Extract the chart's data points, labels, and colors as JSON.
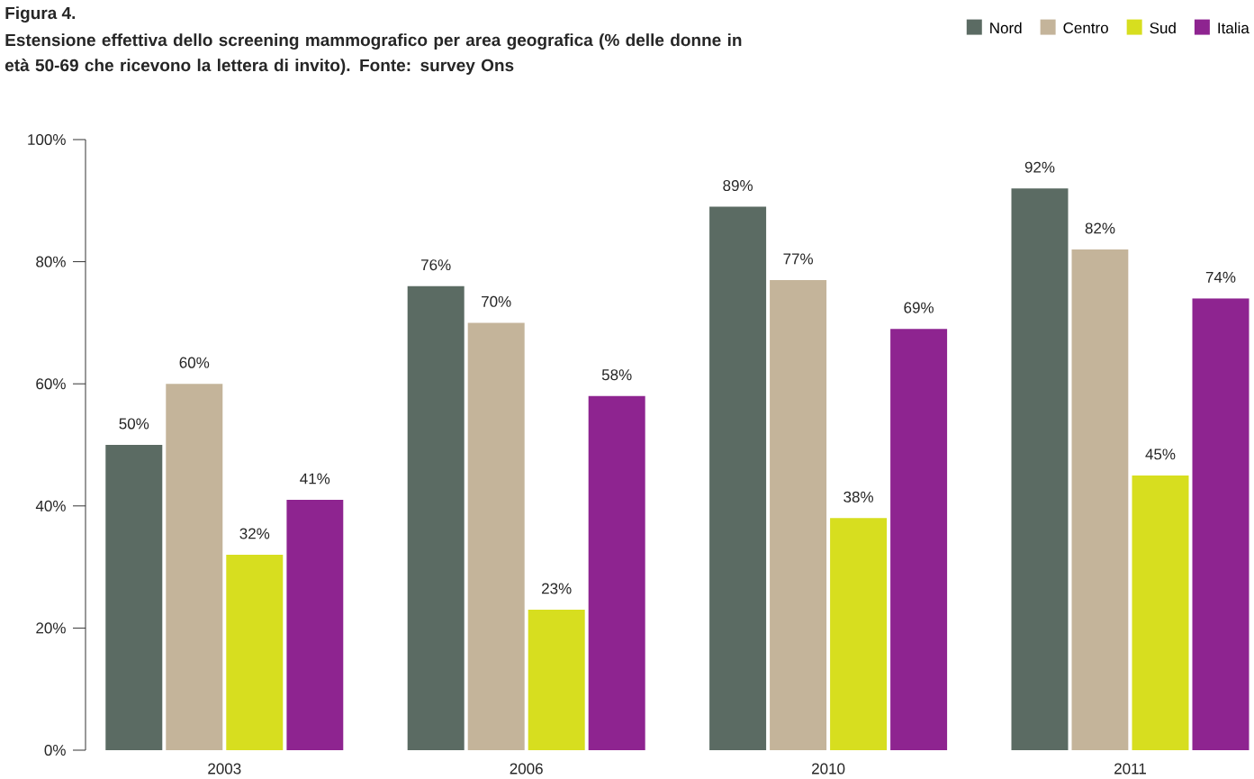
{
  "chart_data": {
    "type": "bar",
    "title": "Figura 4.",
    "subtitle": "Estensione effettiva dello screening mammografico per area geografica (% delle donne in età 50-69 che ricevono la lettera di invito). Fonte: survey Ons",
    "categories": [
      "2003",
      "2006",
      "2010",
      "2011"
    ],
    "series": [
      {
        "name": "Nord",
        "color": "#5b6b63",
        "values": [
          50,
          76,
          89,
          92
        ],
        "value_labels": [
          "50%",
          "76%",
          "89%",
          "92%"
        ]
      },
      {
        "name": "Centro",
        "color": "#c4b49a",
        "values": [
          60,
          70,
          77,
          82
        ],
        "value_labels": [
          "60%",
          "70%",
          "77%",
          "82%"
        ]
      },
      {
        "name": "Sud",
        "color": "#d7de1f",
        "values": [
          32,
          23,
          38,
          45
        ],
        "value_labels": [
          "32%",
          "23%",
          "38%",
          "45%"
        ]
      },
      {
        "name": "Italia",
        "color": "#8e2490",
        "values": [
          41,
          58,
          69,
          74
        ],
        "value_labels": [
          "41%",
          "58%",
          "69%",
          "74%"
        ]
      }
    ],
    "ylim": [
      0,
      100
    ],
    "yticks": [
      {
        "value": 0,
        "label": "0%"
      },
      {
        "value": 20,
        "label": "20%"
      },
      {
        "value": 40,
        "label": "40%"
      },
      {
        "value": 60,
        "label": "60%"
      },
      {
        "value": 80,
        "label": "80%"
      },
      {
        "value": 100,
        "label": "100%"
      }
    ],
    "grid": false,
    "legend": "top right"
  }
}
